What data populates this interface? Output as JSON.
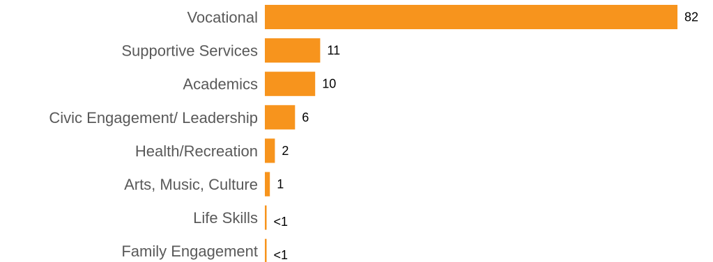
{
  "chart_data": {
    "type": "bar",
    "orientation": "horizontal",
    "categories": [
      "Vocational",
      "Supportive Services",
      "Academics",
      "Civic Engagement/ Leadership",
      "Health/Recreation",
      "Arts, Music, Culture",
      "Life Skills",
      "Family Engagement"
    ],
    "values": [
      82,
      11,
      10,
      6,
      2,
      1,
      0.3,
      0.3
    ],
    "value_labels": [
      "82",
      "11",
      "10",
      "6",
      "2",
      "1",
      "<1",
      "<1"
    ],
    "bar_color": "#F7941D",
    "label_color": "#595959",
    "value_label_color": "#000000",
    "grid": false,
    "legend": "none"
  }
}
